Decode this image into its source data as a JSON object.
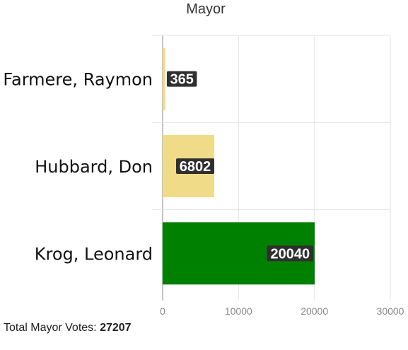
{
  "chart_data": {
    "type": "bar",
    "orientation": "horizontal",
    "title": "Mayor",
    "categories": [
      "Farmere, Raymon",
      "Hubbard, Don",
      "Krog, Leonard"
    ],
    "values": [
      365,
      6802,
      20040
    ],
    "bar_colors": [
      "#f0db89",
      "#f0db89",
      "#008000"
    ],
    "xlim": [
      0,
      30000
    ],
    "xticks": [
      0,
      10000,
      20000,
      30000
    ],
    "grid": true,
    "data_labels": true
  },
  "footer": {
    "total_label": "Total Mayor Votes:",
    "total_value": "27207"
  }
}
